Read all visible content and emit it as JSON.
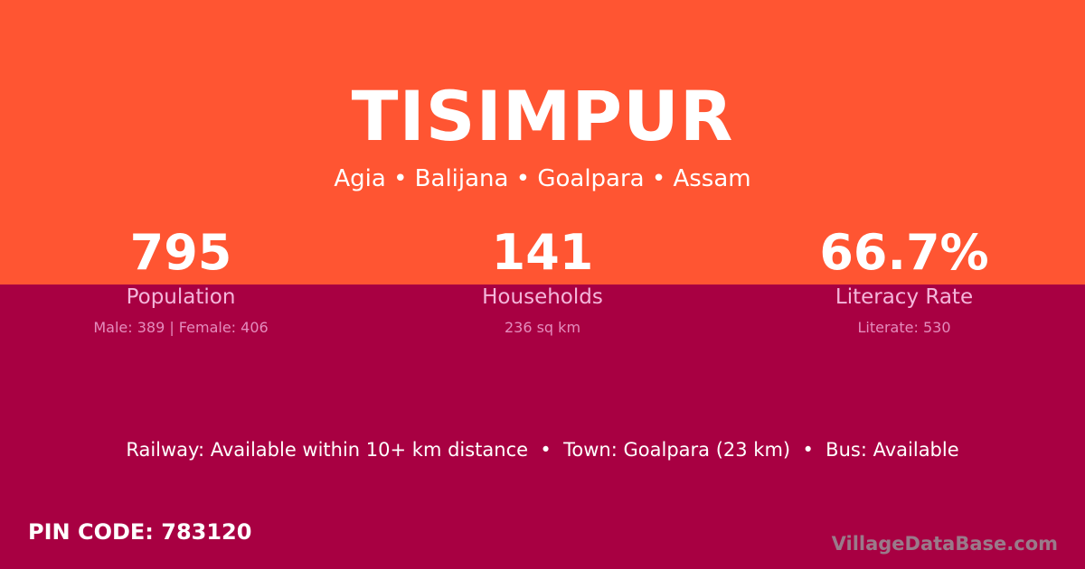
{
  "colors": {
    "top_bg": "#ff5532",
    "bottom_bg": "#a80042",
    "label": "#f4b6db"
  },
  "village": "TISIMPUR",
  "location": "Agia • Balijana • Goalpara • Assam",
  "stats": [
    {
      "value": "795",
      "label": "Population",
      "detail": "Male: 389 | Female: 406"
    },
    {
      "value": "141",
      "label": "Households",
      "detail": "236 sq km"
    },
    {
      "value": "66.7%",
      "label": "Literacy Rate",
      "detail": "Literate: 530"
    }
  ],
  "transport": "Railway: Available within 10+ km distance  •  Town: Goalpara (23 km)  •  Bus: Available",
  "pin": "PIN CODE: 783120",
  "brand": "VillageDataBase.com"
}
